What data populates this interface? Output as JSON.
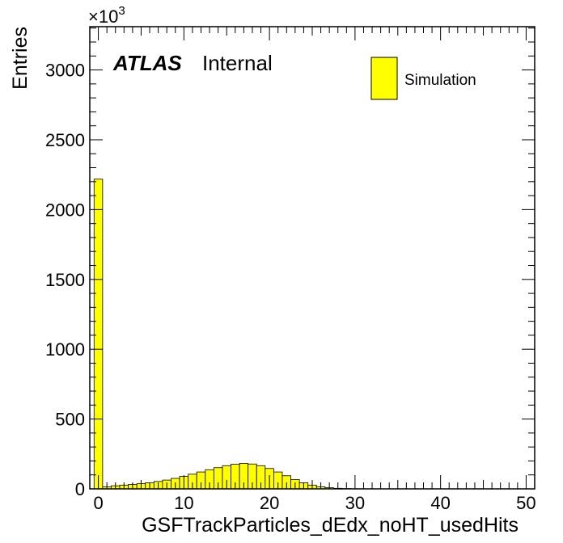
{
  "chart_data": {
    "type": "bar",
    "histogram": true,
    "xlabel": "GSFTrackParticles_dEdx_noHT_usedHits",
    "ylabel": "Entries",
    "y_multiplier_base": "×10",
    "y_multiplier_exp": "3",
    "xlim": [
      -1,
      51
    ],
    "ylim": [
      0,
      3310
    ],
    "bin_edges_start": -0.5,
    "bin_width": 1,
    "x_ticks": [
      "0",
      "10",
      "20",
      "30",
      "40",
      "50"
    ],
    "x_tick_values": [
      0,
      10,
      20,
      30,
      40,
      50
    ],
    "y_ticks": [
      "0",
      "500",
      "1000",
      "1500",
      "2000",
      "2500",
      "3000"
    ],
    "y_tick_values": [
      0,
      500,
      1000,
      1500,
      2000,
      2500,
      3000
    ],
    "series": [
      {
        "name": "Simulation",
        "color": "#ffff00",
        "values": [
          2218,
          14,
          22,
          27,
          32,
          37,
          44,
          53,
          63,
          75,
          90,
          105,
          121,
          137,
          152,
          166,
          177,
          182,
          178,
          166,
          146,
          121,
          94,
          67,
          44,
          27,
          15,
          8,
          4,
          2,
          1,
          0.5,
          0.3,
          0.2,
          0.1,
          0.05,
          0,
          0,
          0,
          0,
          0,
          0,
          0,
          0,
          0,
          0,
          0,
          0,
          0,
          0,
          0
        ]
      }
    ]
  },
  "atlas_label": "ATLAS",
  "atlas_status": "Internal",
  "legend": {
    "label": "Simulation",
    "color": "#ffff00"
  }
}
